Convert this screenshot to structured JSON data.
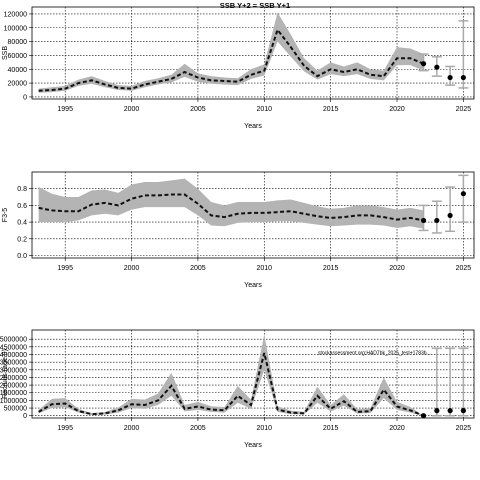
{
  "chart_data": [
    {
      "type": "line",
      "title": "SSB Y+2 = SSB Y+1",
      "xlabel": "Years",
      "ylabel": "SSB",
      "xlim": [
        1992.5,
        2025.8
      ],
      "ylim": [
        -3000,
        130000
      ],
      "xticks": [
        1995,
        2000,
        2005,
        2010,
        2015,
        2020,
        2025
      ],
      "yticks": [
        0,
        20000,
        40000,
        60000,
        80000,
        100000,
        120000
      ],
      "ytick_labels": [
        "0",
        "20000",
        "40000",
        "60000",
        "80000",
        "100000",
        "120000"
      ],
      "grid": true,
      "x": [
        1993,
        1994,
        1995,
        1996,
        1997,
        1998,
        1999,
        2000,
        2001,
        2002,
        2003,
        2004,
        2005,
        2006,
        2007,
        2008,
        2009,
        2010,
        2011,
        2012,
        2013,
        2014,
        2015,
        2016,
        2017,
        2018,
        2019,
        2020,
        2021,
        2022
      ],
      "series": [
        {
          "name": "estimate",
          "values": [
            9000,
            10000,
            12000,
            20000,
            24000,
            18000,
            13000,
            12000,
            18000,
            22000,
            26000,
            36000,
            28000,
            24000,
            23000,
            22000,
            32000,
            38000,
            97000,
            72000,
            45000,
            30000,
            40000,
            36000,
            40000,
            32000,
            30000,
            56000,
            56000,
            48000
          ]
        },
        {
          "name": "lower",
          "values": [
            6000,
            7000,
            9000,
            16000,
            19000,
            14000,
            10000,
            9000,
            14000,
            18000,
            21000,
            29000,
            22000,
            19000,
            18000,
            17000,
            26000,
            31000,
            80000,
            58000,
            37000,
            25000,
            33000,
            30000,
            33000,
            26000,
            24000,
            46000,
            46000,
            38000
          ]
        },
        {
          "name": "upper",
          "values": [
            12000,
            14000,
            16000,
            25000,
            30000,
            23000,
            17000,
            16000,
            23000,
            27000,
            32000,
            48000,
            34000,
            30000,
            28000,
            27000,
            40000,
            47000,
            122000,
            90000,
            56000,
            38000,
            50000,
            44000,
            50000,
            40000,
            38000,
            72000,
            70000,
            62000
          ]
        }
      ],
      "projection": [
        {
          "x": 2022,
          "value": 48000,
          "lower": 38000,
          "upper": 62000
        },
        {
          "x": 2023,
          "value": 43000,
          "lower": 30000,
          "upper": 58000
        },
        {
          "x": 2024,
          "value": 28000,
          "lower": 17000,
          "upper": 44000
        },
        {
          "x": 2025,
          "value": 28000,
          "lower": 13000,
          "upper": 110000
        }
      ]
    },
    {
      "type": "line",
      "xlabel": "Years",
      "ylabel": "F3-5",
      "xlim": [
        1992.5,
        2025.8
      ],
      "ylim": [
        -0.03,
        1.0
      ],
      "xticks": [
        1995,
        2000,
        2005,
        2010,
        2015,
        2020,
        2025
      ],
      "yticks": [
        0.0,
        0.2,
        0.4,
        0.6,
        0.8
      ],
      "ytick_labels": [
        "0.0",
        "0.2",
        "0.4",
        "0.6",
        "0.8"
      ],
      "grid": true,
      "x": [
        1993,
        1994,
        1995,
        1996,
        1997,
        1998,
        1999,
        2000,
        2001,
        2002,
        2003,
        2004,
        2005,
        2006,
        2007,
        2008,
        2009,
        2010,
        2011,
        2012,
        2013,
        2014,
        2015,
        2016,
        2017,
        2018,
        2019,
        2020,
        2021,
        2022
      ],
      "series": [
        {
          "name": "estimate",
          "values": [
            0.57,
            0.54,
            0.53,
            0.53,
            0.61,
            0.63,
            0.6,
            0.68,
            0.72,
            0.72,
            0.73,
            0.73,
            0.62,
            0.48,
            0.46,
            0.5,
            0.51,
            0.51,
            0.52,
            0.53,
            0.5,
            0.47,
            0.45,
            0.46,
            0.48,
            0.48,
            0.46,
            0.43,
            0.45,
            0.42
          ]
        },
        {
          "name": "lower",
          "values": [
            0.4,
            0.4,
            0.4,
            0.42,
            0.48,
            0.5,
            0.48,
            0.55,
            0.58,
            0.58,
            0.58,
            0.58,
            0.48,
            0.36,
            0.35,
            0.39,
            0.4,
            0.4,
            0.41,
            0.41,
            0.39,
            0.37,
            0.35,
            0.36,
            0.37,
            0.37,
            0.36,
            0.33,
            0.35,
            0.32
          ]
        },
        {
          "name": "upper",
          "values": [
            0.82,
            0.74,
            0.7,
            0.7,
            0.78,
            0.79,
            0.75,
            0.85,
            0.88,
            0.88,
            0.9,
            0.92,
            0.8,
            0.64,
            0.6,
            0.64,
            0.64,
            0.64,
            0.66,
            0.67,
            0.63,
            0.59,
            0.56,
            0.57,
            0.6,
            0.6,
            0.58,
            0.55,
            0.57,
            0.54
          ]
        }
      ],
      "projection": [
        {
          "x": 2022,
          "value": 0.42,
          "lower": 0.3,
          "upper": 0.6
        },
        {
          "x": 2023,
          "value": 0.42,
          "lower": 0.27,
          "upper": 0.65
        },
        {
          "x": 2024,
          "value": 0.48,
          "lower": 0.29,
          "upper": 0.82
        },
        {
          "x": 2025,
          "value": 0.74,
          "lower": 0.4,
          "upper": 0.96
        }
      ]
    },
    {
      "type": "line",
      "xlabel": "Years",
      "ylabel": "Recruits (age 0)",
      "annotation": "stockassessment.org:HAD7bk_2025_test+1783b...",
      "xlim": [
        1992.5,
        2025.8
      ],
      "ylim": [
        -150000,
        5600000
      ],
      "xticks": [
        1995,
        2000,
        2005,
        2010,
        2015,
        2020,
        2025
      ],
      "yticks": [
        0,
        500000,
        1000000,
        1500000,
        2000000,
        2500000,
        3000000,
        3500000,
        4000000,
        4500000,
        5000000
      ],
      "ytick_labels": [
        "0",
        "500000",
        "1000000",
        "1500000",
        "2000000",
        "2500000",
        "3000000",
        "3500000",
        "4000000",
        "4500000",
        "5000000"
      ],
      "grid": true,
      "x": [
        1993,
        1994,
        1995,
        1996,
        1997,
        1998,
        1999,
        2000,
        2001,
        2002,
        2003,
        2004,
        2005,
        2006,
        2007,
        2008,
        2009,
        2010,
        2011,
        2012,
        2013,
        2014,
        2015,
        2016,
        2017,
        2018,
        2019,
        2020,
        2021,
        2022
      ],
      "series": [
        {
          "name": "estimate",
          "values": [
            250000,
            750000,
            800000,
            300000,
            100000,
            150000,
            350000,
            750000,
            700000,
            1000000,
            1950000,
            450000,
            600000,
            400000,
            350000,
            1300000,
            700000,
            4100000,
            400000,
            200000,
            150000,
            1300000,
            450000,
            950000,
            250000,
            300000,
            1700000,
            600000,
            350000,
            0
          ]
        },
        {
          "name": "lower",
          "values": [
            150000,
            500000,
            550000,
            200000,
            50000,
            80000,
            200000,
            500000,
            450000,
            700000,
            1300000,
            280000,
            380000,
            250000,
            200000,
            850000,
            450000,
            3000000,
            250000,
            100000,
            80000,
            850000,
            280000,
            650000,
            140000,
            170000,
            1150000,
            380000,
            200000,
            0
          ]
        },
        {
          "name": "upper",
          "values": [
            380000,
            1100000,
            1150000,
            450000,
            170000,
            240000,
            540000,
            1100000,
            1050000,
            1450000,
            2800000,
            700000,
            900000,
            620000,
            560000,
            1950000,
            1050000,
            5300000,
            620000,
            330000,
            260000,
            1900000,
            700000,
            1400000,
            420000,
            500000,
            2500000,
            900000,
            580000,
            0
          ]
        }
      ],
      "projection": [
        {
          "x": 2022,
          "value": 0,
          "lower": 0,
          "upper": 0
        },
        {
          "x": 2023,
          "value": 330000,
          "lower": 0,
          "upper": 4400000
        },
        {
          "x": 2024,
          "value": 330000,
          "lower": 0,
          "upper": 4400000
        },
        {
          "x": 2025,
          "value": 330000,
          "lower": 0,
          "upper": 4400000
        }
      ]
    }
  ]
}
